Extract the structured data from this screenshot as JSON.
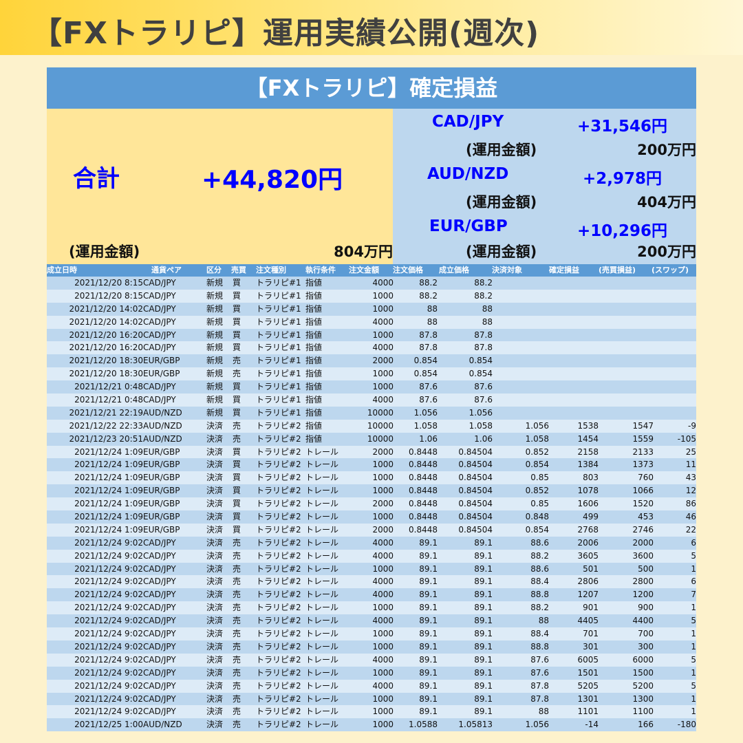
{
  "banner_title": "【FXトラリピ】運用実績公開(週次)",
  "panel_title": "【FXトラリピ】確定損益",
  "summary": {
    "total_label": "合計",
    "total_value": "+44,820円",
    "total_capital_label": "(運用金額)",
    "total_capital_value": "804万円",
    "pairs": [
      {
        "pair": "CAD/JPY",
        "profit": "+31,546円",
        "capital_label": "(運用金額)",
        "capital_value": "200万円"
      },
      {
        "pair": "AUD/NZD",
        "profit": "+2,978円",
        "capital_label": "(運用金額)",
        "capital_value": "404万円"
      },
      {
        "pair": "EUR/GBP",
        "profit": "+10,296円",
        "capital_label": "(運用金額)",
        "capital_value": "200万円"
      }
    ]
  },
  "table": {
    "headers": [
      "成立日時",
      "通貨ペア",
      "区分",
      "売買",
      "注文種別",
      "執行条件",
      "注文金額",
      "注文価格",
      "成立価格",
      "決済対象",
      "確定損益",
      "(売買損益)",
      "(スワップ)"
    ],
    "rows": [
      [
        "2021/12/20 8:15",
        "CAD/JPY",
        "新規",
        "買",
        "トラリピ#1",
        "指値",
        "4000",
        "88.2",
        "88.2",
        "",
        "",
        "",
        ""
      ],
      [
        "2021/12/20 8:15",
        "CAD/JPY",
        "新規",
        "買",
        "トラリピ#1",
        "指値",
        "1000",
        "88.2",
        "88.2",
        "",
        "",
        "",
        ""
      ],
      [
        "2021/12/20 14:02",
        "CAD/JPY",
        "新規",
        "買",
        "トラリピ#1",
        "指値",
        "1000",
        "88",
        "88",
        "",
        "",
        "",
        ""
      ],
      [
        "2021/12/20 14:02",
        "CAD/JPY",
        "新規",
        "買",
        "トラリピ#1",
        "指値",
        "4000",
        "88",
        "88",
        "",
        "",
        "",
        ""
      ],
      [
        "2021/12/20 16:20",
        "CAD/JPY",
        "新規",
        "買",
        "トラリピ#1",
        "指値",
        "1000",
        "87.8",
        "87.8",
        "",
        "",
        "",
        ""
      ],
      [
        "2021/12/20 16:20",
        "CAD/JPY",
        "新規",
        "買",
        "トラリピ#1",
        "指値",
        "4000",
        "87.8",
        "87.8",
        "",
        "",
        "",
        ""
      ],
      [
        "2021/12/20 18:30",
        "EUR/GBP",
        "新規",
        "売",
        "トラリピ#1",
        "指値",
        "2000",
        "0.854",
        "0.854",
        "",
        "",
        "",
        ""
      ],
      [
        "2021/12/20 18:30",
        "EUR/GBP",
        "新規",
        "売",
        "トラリピ#1",
        "指値",
        "1000",
        "0.854",
        "0.854",
        "",
        "",
        "",
        ""
      ],
      [
        "2021/12/21 0:48",
        "CAD/JPY",
        "新規",
        "買",
        "トラリピ#1",
        "指値",
        "1000",
        "87.6",
        "87.6",
        "",
        "",
        "",
        ""
      ],
      [
        "2021/12/21 0:48",
        "CAD/JPY",
        "新規",
        "買",
        "トラリピ#1",
        "指値",
        "4000",
        "87.6",
        "87.6",
        "",
        "",
        "",
        ""
      ],
      [
        "2021/12/21 22:19",
        "AUD/NZD",
        "新規",
        "買",
        "トラリピ#1",
        "指値",
        "10000",
        "1.056",
        "1.056",
        "",
        "",
        "",
        ""
      ],
      [
        "2021/12/22 22:33",
        "AUD/NZD",
        "決済",
        "売",
        "トラリピ#2",
        "指値",
        "10000",
        "1.058",
        "1.058",
        "1.056",
        "1538",
        "1547",
        "-9"
      ],
      [
        "2021/12/23 20:51",
        "AUD/NZD",
        "決済",
        "売",
        "トラリピ#2",
        "指値",
        "10000",
        "1.06",
        "1.06",
        "1.058",
        "1454",
        "1559",
        "-105"
      ],
      [
        "2021/12/24 1:09",
        "EUR/GBP",
        "決済",
        "買",
        "トラリピ#2",
        "トレール",
        "2000",
        "0.8448",
        "0.84504",
        "0.852",
        "2158",
        "2133",
        "25"
      ],
      [
        "2021/12/24 1:09",
        "EUR/GBP",
        "決済",
        "買",
        "トラリピ#2",
        "トレール",
        "1000",
        "0.8448",
        "0.84504",
        "0.854",
        "1384",
        "1373",
        "11"
      ],
      [
        "2021/12/24 1:09",
        "EUR/GBP",
        "決済",
        "買",
        "トラリピ#2",
        "トレール",
        "1000",
        "0.8448",
        "0.84504",
        "0.85",
        "803",
        "760",
        "43"
      ],
      [
        "2021/12/24 1:09",
        "EUR/GBP",
        "決済",
        "買",
        "トラリピ#2",
        "トレール",
        "1000",
        "0.8448",
        "0.84504",
        "0.852",
        "1078",
        "1066",
        "12"
      ],
      [
        "2021/12/24 1:09",
        "EUR/GBP",
        "決済",
        "買",
        "トラリピ#2",
        "トレール",
        "2000",
        "0.8448",
        "0.84504",
        "0.85",
        "1606",
        "1520",
        "86"
      ],
      [
        "2021/12/24 1:09",
        "EUR/GBP",
        "決済",
        "買",
        "トラリピ#2",
        "トレール",
        "1000",
        "0.8448",
        "0.84504",
        "0.848",
        "499",
        "453",
        "46"
      ],
      [
        "2021/12/24 1:09",
        "EUR/GBP",
        "決済",
        "買",
        "トラリピ#2",
        "トレール",
        "2000",
        "0.8448",
        "0.84504",
        "0.854",
        "2768",
        "2746",
        "22"
      ],
      [
        "2021/12/24 9:02",
        "CAD/JPY",
        "決済",
        "売",
        "トラリピ#2",
        "トレール",
        "4000",
        "89.1",
        "89.1",
        "88.6",
        "2006",
        "2000",
        "6"
      ],
      [
        "2021/12/24 9:02",
        "CAD/JPY",
        "決済",
        "売",
        "トラリピ#2",
        "トレール",
        "4000",
        "89.1",
        "89.1",
        "88.2",
        "3605",
        "3600",
        "5"
      ],
      [
        "2021/12/24 9:02",
        "CAD/JPY",
        "決済",
        "売",
        "トラリピ#2",
        "トレール",
        "1000",
        "89.1",
        "89.1",
        "88.6",
        "501",
        "500",
        "1"
      ],
      [
        "2021/12/24 9:02",
        "CAD/JPY",
        "決済",
        "売",
        "トラリピ#2",
        "トレール",
        "4000",
        "89.1",
        "89.1",
        "88.4",
        "2806",
        "2800",
        "6"
      ],
      [
        "2021/12/24 9:02",
        "CAD/JPY",
        "決済",
        "売",
        "トラリピ#2",
        "トレール",
        "4000",
        "89.1",
        "89.1",
        "88.8",
        "1207",
        "1200",
        "7"
      ],
      [
        "2021/12/24 9:02",
        "CAD/JPY",
        "決済",
        "売",
        "トラリピ#2",
        "トレール",
        "1000",
        "89.1",
        "89.1",
        "88.2",
        "901",
        "900",
        "1"
      ],
      [
        "2021/12/24 9:02",
        "CAD/JPY",
        "決済",
        "売",
        "トラリピ#2",
        "トレール",
        "4000",
        "89.1",
        "89.1",
        "88",
        "4405",
        "4400",
        "5"
      ],
      [
        "2021/12/24 9:02",
        "CAD/JPY",
        "決済",
        "売",
        "トラリピ#2",
        "トレール",
        "1000",
        "89.1",
        "89.1",
        "88.4",
        "701",
        "700",
        "1"
      ],
      [
        "2021/12/24 9:02",
        "CAD/JPY",
        "決済",
        "売",
        "トラリピ#2",
        "トレール",
        "1000",
        "89.1",
        "89.1",
        "88.8",
        "301",
        "300",
        "1"
      ],
      [
        "2021/12/24 9:02",
        "CAD/JPY",
        "決済",
        "売",
        "トラリピ#2",
        "トレール",
        "4000",
        "89.1",
        "89.1",
        "87.6",
        "6005",
        "6000",
        "5"
      ],
      [
        "2021/12/24 9:02",
        "CAD/JPY",
        "決済",
        "売",
        "トラリピ#2",
        "トレール",
        "1000",
        "89.1",
        "89.1",
        "87.6",
        "1501",
        "1500",
        "1"
      ],
      [
        "2021/12/24 9:02",
        "CAD/JPY",
        "決済",
        "売",
        "トラリピ#2",
        "トレール",
        "4000",
        "89.1",
        "89.1",
        "87.8",
        "5205",
        "5200",
        "5"
      ],
      [
        "2021/12/24 9:02",
        "CAD/JPY",
        "決済",
        "売",
        "トラリピ#2",
        "トレール",
        "1000",
        "89.1",
        "89.1",
        "87.8",
        "1301",
        "1300",
        "1"
      ],
      [
        "2021/12/24 9:02",
        "CAD/JPY",
        "決済",
        "売",
        "トラリピ#2",
        "トレール",
        "1000",
        "89.1",
        "89.1",
        "88",
        "1101",
        "1100",
        "1"
      ],
      [
        "2021/12/25 1:00",
        "AUD/NZD",
        "決済",
        "売",
        "トラリピ#2",
        "トレール",
        "1000",
        "1.0588",
        "1.05813",
        "1.056",
        "-14",
        "166",
        "-180"
      ]
    ]
  }
}
